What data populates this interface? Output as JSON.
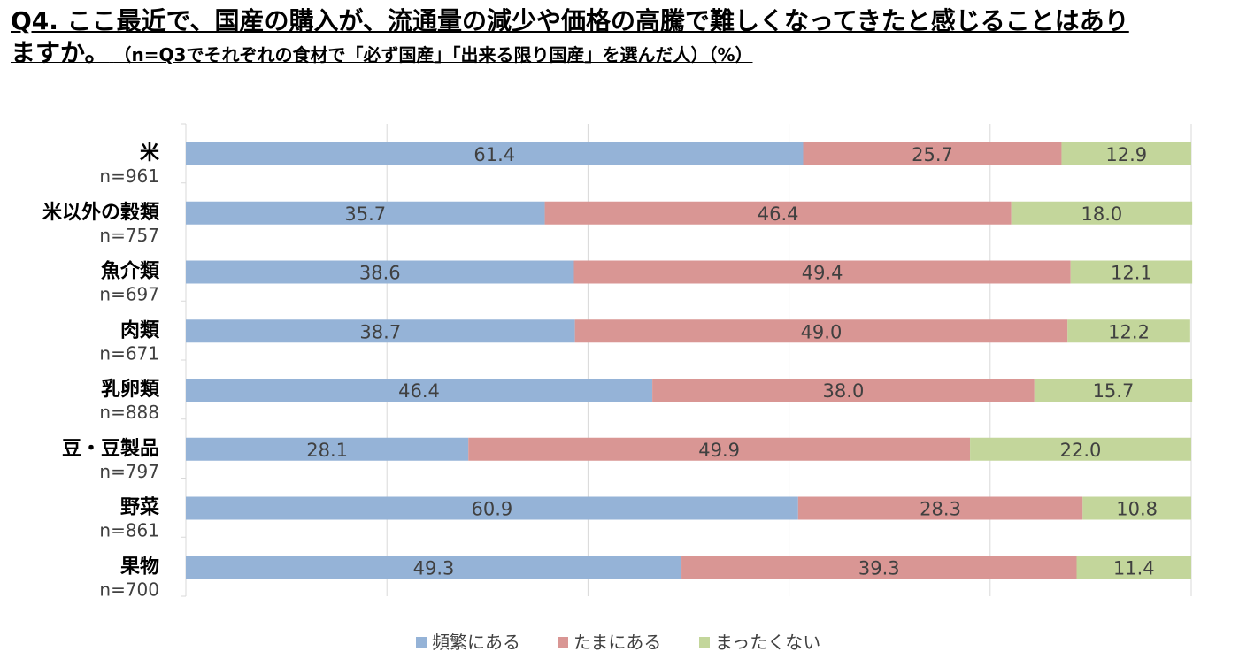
{
  "title": {
    "line1": "Q4. ここ最近で、国産の購入が、流通量の減少や価格の高騰で難しくなってきたと感じることはあり",
    "line2_main": "ますか。",
    "line2_sub": "（n=Q3でそれぞれの食材で「必ず国産」「出来る限り国産」を選んだ人）（%）"
  },
  "chart_data": {
    "type": "bar",
    "orientation": "horizontal",
    "stacked": true,
    "categories": [
      "米",
      "米以外の穀類",
      "魚介類",
      "肉類",
      "乳卵類",
      "豆・豆製品",
      "野菜",
      "果物"
    ],
    "sample_sizes": [
      "n=961",
      "n=757",
      "n=697",
      "n=671",
      "n=888",
      "n=797",
      "n=861",
      "n=700"
    ],
    "series": [
      {
        "name": "頻繁にある",
        "color": "#95b3d7",
        "values": [
          61.4,
          35.7,
          38.6,
          38.7,
          46.4,
          28.1,
          60.9,
          49.3
        ]
      },
      {
        "name": "たまにある",
        "color": "#d99694",
        "values": [
          25.7,
          46.4,
          49.4,
          49.0,
          38.0,
          49.9,
          28.3,
          39.3
        ]
      },
      {
        "name": "まったくない",
        "color": "#c3d69b",
        "values": [
          12.9,
          18.0,
          12.1,
          12.2,
          15.7,
          22.0,
          10.8,
          11.4
        ]
      }
    ],
    "xlim": [
      0,
      100
    ],
    "grid": true,
    "legend": "bottom"
  }
}
